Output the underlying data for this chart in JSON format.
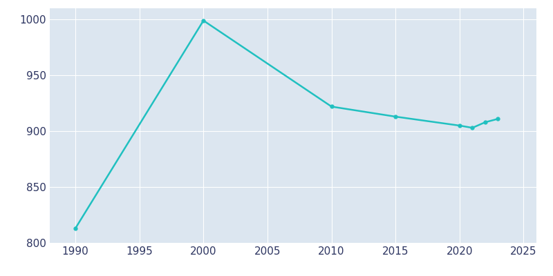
{
  "years": [
    1990,
    2000,
    2010,
    2015,
    2020,
    2021,
    2022,
    2023
  ],
  "population": [
    813,
    999,
    922,
    913,
    905,
    903,
    908,
    911
  ],
  "line_color": "#20c0c0",
  "marker": "o",
  "marker_size": 3.5,
  "line_width": 1.8,
  "plot_bg_color": "#dce6f0",
  "fig_bg_color": "#ffffff",
  "xlim": [
    1988,
    2026
  ],
  "ylim": [
    800,
    1010
  ],
  "xticks": [
    1990,
    1995,
    2000,
    2005,
    2010,
    2015,
    2020,
    2025
  ],
  "yticks": [
    800,
    850,
    900,
    950,
    1000
  ],
  "grid_color": "#ffffff",
  "grid_alpha": 1.0,
  "grid_linewidth": 0.8,
  "tick_label_color": "#2d3561",
  "tick_fontsize": 11
}
